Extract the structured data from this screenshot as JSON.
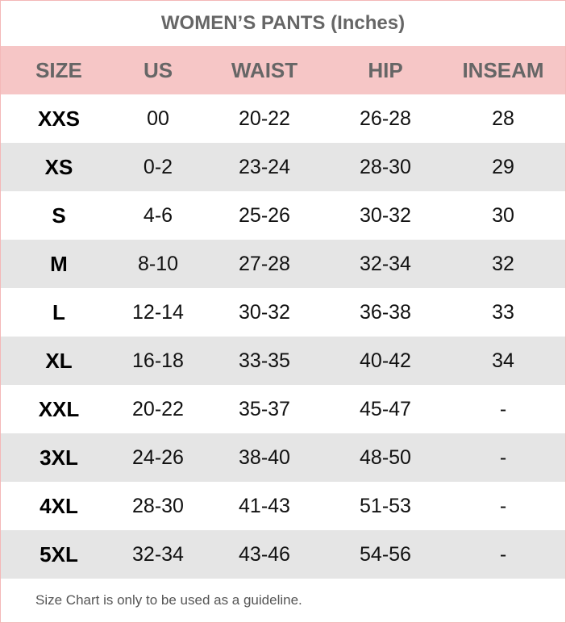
{
  "title": "WOMEN’S PANTS (Inches)",
  "headers": [
    "SIZE",
    "US",
    "WAIST",
    "HIP",
    "INSEAM"
  ],
  "rows": [
    [
      "XXS",
      "00",
      "20-22",
      "26-28",
      "28"
    ],
    [
      "XS",
      "0-2",
      "23-24",
      "28-30",
      "29"
    ],
    [
      "S",
      "4-6",
      "25-26",
      "30-32",
      "30"
    ],
    [
      "M",
      "8-10",
      "27-28",
      "32-34",
      "32"
    ],
    [
      "L",
      "12-14",
      "30-32",
      "36-38",
      "33"
    ],
    [
      "XL",
      "16-18",
      "33-35",
      "40-42",
      "34"
    ],
    [
      "XXL",
      "20-22",
      "35-37",
      "45-47",
      "-"
    ],
    [
      "3XL",
      "24-26",
      "38-40",
      "48-50",
      "-"
    ],
    [
      "4XL",
      "28-30",
      "41-43",
      "51-53",
      "-"
    ],
    [
      "5XL",
      "32-34",
      "43-46",
      "54-56",
      "-"
    ]
  ],
  "footer": "Size Chart is only to be used as a guideline.",
  "colors": {
    "header_bg": "#f6c6c6",
    "alt_row_bg": "#e5e5e5",
    "border": "#f4b8b8",
    "header_text": "#666666"
  }
}
